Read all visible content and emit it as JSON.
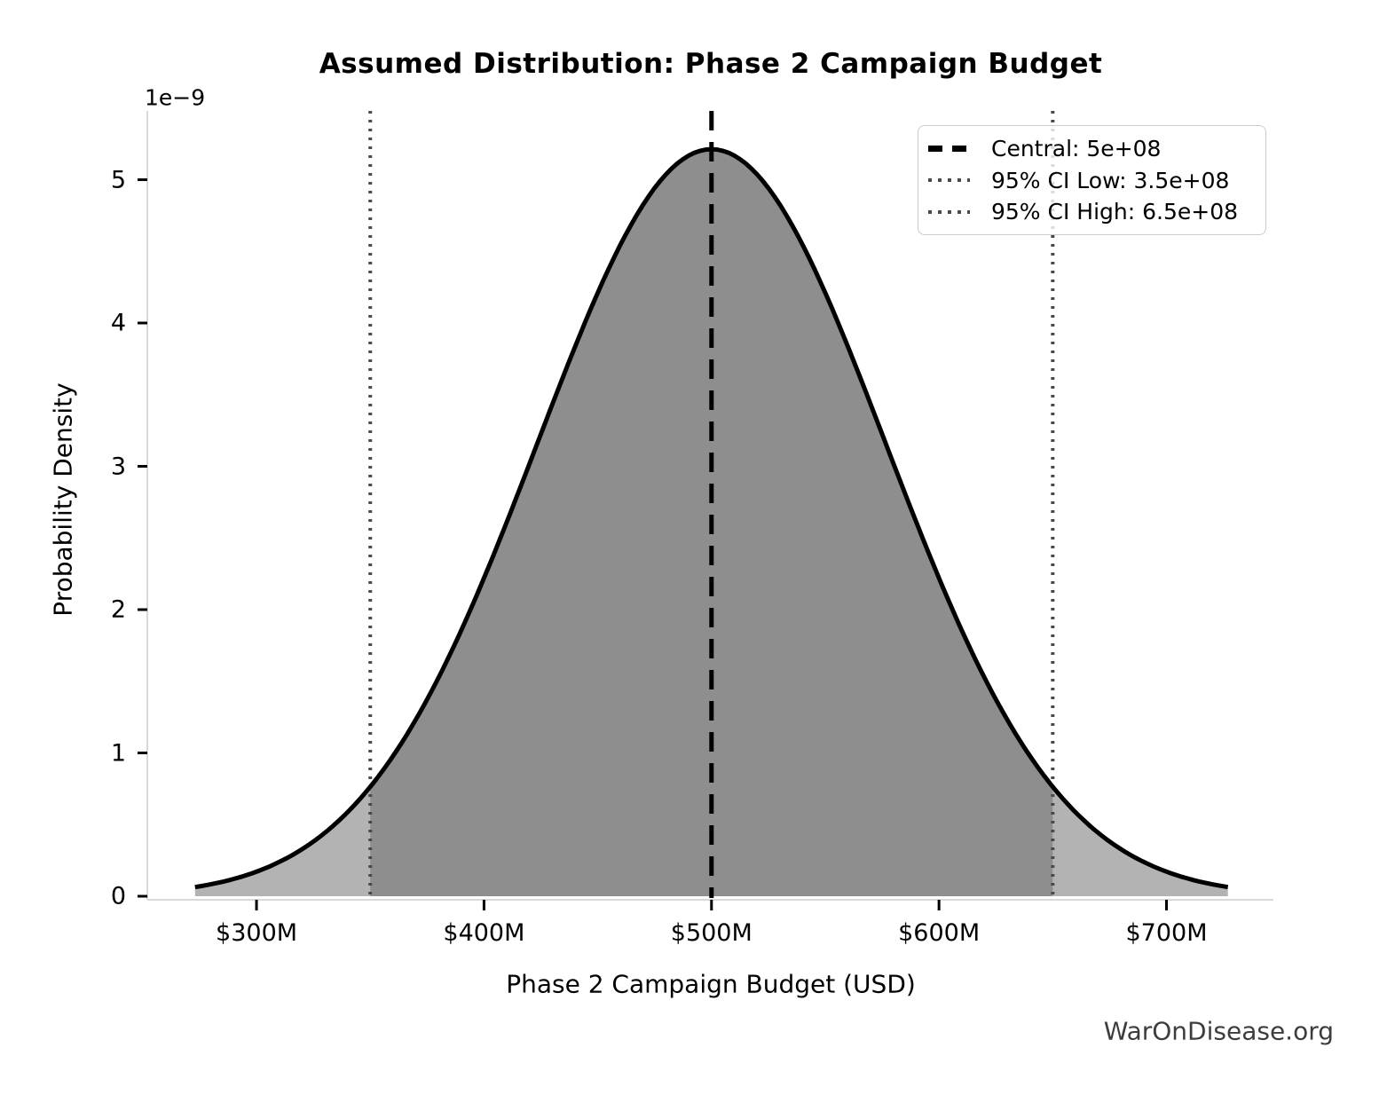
{
  "page": {
    "watermark": "WarOnDisease.org"
  },
  "chart_data": {
    "type": "area",
    "title": "Assumed Distribution: Phase 2 Campaign Budget",
    "xlabel": "Phase 2 Campaign Budget (USD)",
    "ylabel": "Probability Density",
    "y_axis_offset_text": "1e−9",
    "distribution": {
      "shape": "normal",
      "mean": 500000000,
      "sigma": 76530612,
      "peak_density_1e9": 5.21
    },
    "central": 500000000,
    "ci_level": "95%",
    "ci_low": 350000000,
    "ci_high": 650000000,
    "curve_x_range": [
      273000000,
      727000000
    ],
    "xlim": [
      252000000,
      747000000
    ],
    "ylim_1e9": [
      0,
      5.48
    ],
    "x_ticks": [
      {
        "value": 300000000,
        "label": "$300M"
      },
      {
        "value": 400000000,
        "label": "$400M"
      },
      {
        "value": 500000000,
        "label": "$500M"
      },
      {
        "value": 600000000,
        "label": "$600M"
      },
      {
        "value": 700000000,
        "label": "$700M"
      }
    ],
    "y_ticks": [
      {
        "value": 0,
        "label": "0"
      },
      {
        "value": 1,
        "label": "1"
      },
      {
        "value": 2,
        "label": "2"
      },
      {
        "value": 3,
        "label": "3"
      },
      {
        "value": 4,
        "label": "4"
      },
      {
        "value": 5,
        "label": "5"
      }
    ],
    "legend": [
      {
        "label": "Central: 5e+08",
        "style": "dashed",
        "color": "#000000"
      },
      {
        "label": "95% CI Low: 3.5e+08",
        "style": "dotted",
        "color": "#4a4a4a"
      },
      {
        "label": "95% CI High: 6.5e+08",
        "style": "dotted",
        "color": "#4a4a4a"
      }
    ],
    "colors": {
      "curve": "#000000",
      "fill_outer": "#b3b3b3",
      "fill_inner": "#8e8e8e",
      "central_line": "#000000",
      "ci_line": "#4a4a4a",
      "spine": "#d9d9d9",
      "tick_mark": "#000000",
      "text": "#000000",
      "watermark": "#3d3d3d"
    }
  }
}
